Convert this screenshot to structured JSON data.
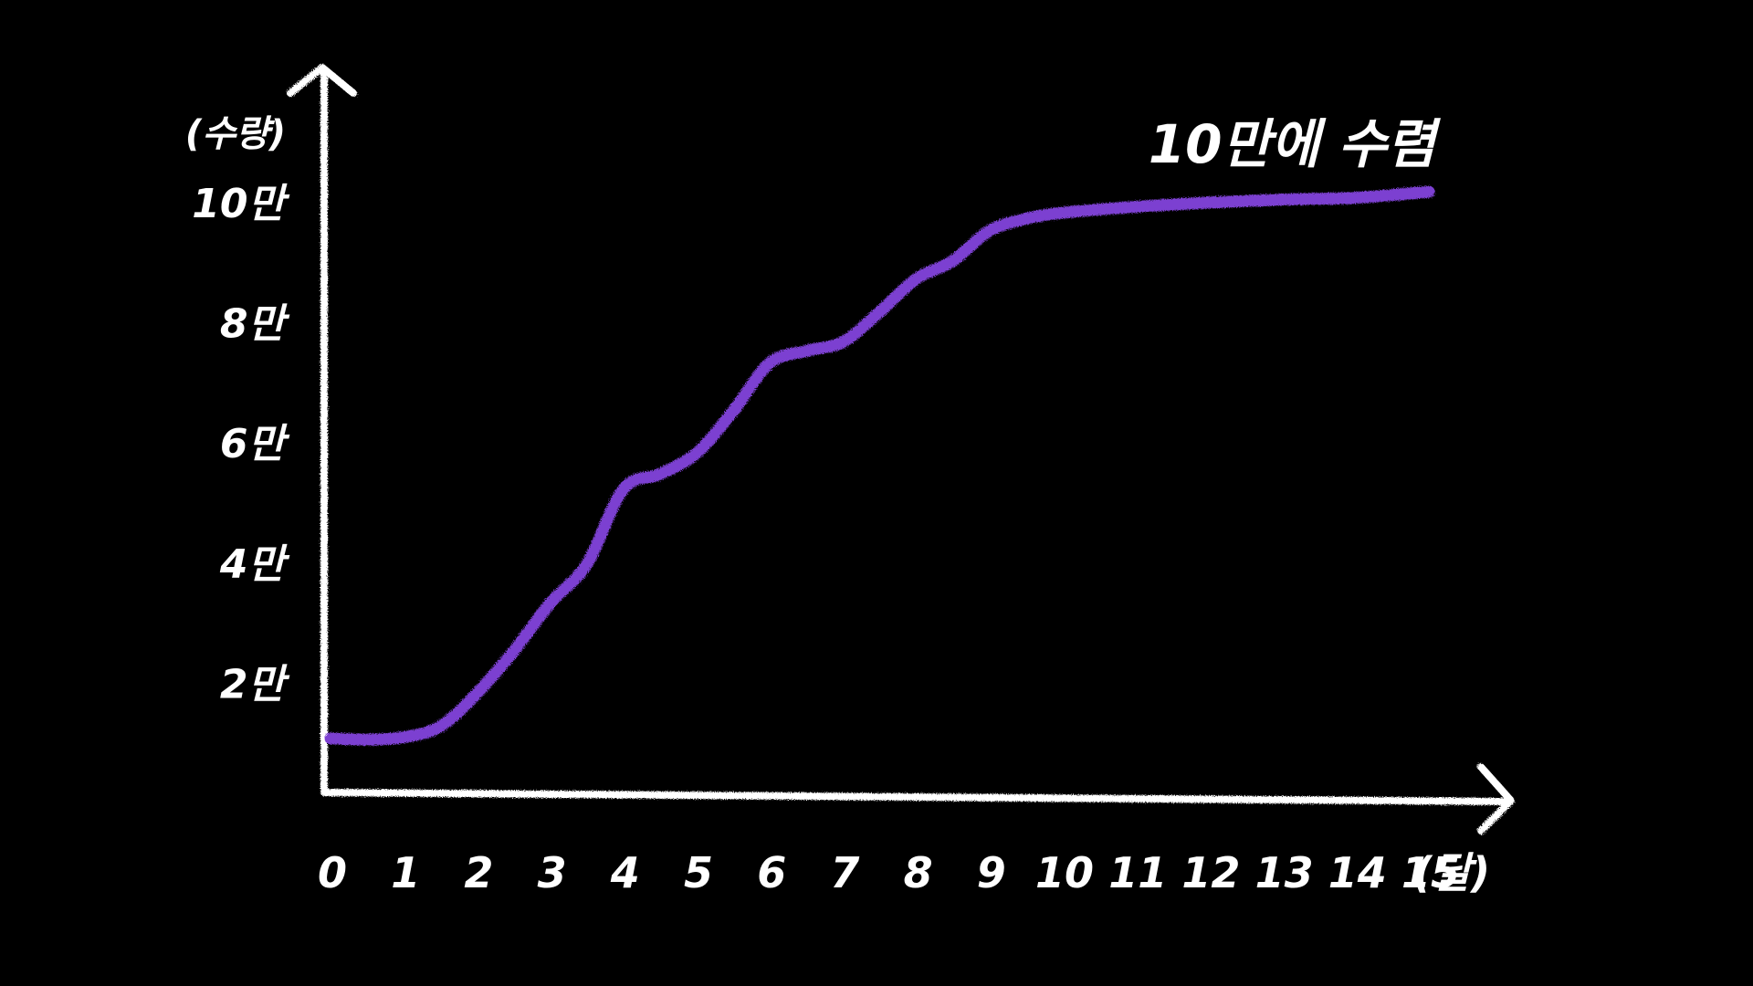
{
  "chart_data": {
    "type": "line",
    "ylabel": "(수량)",
    "xunit": "(달)",
    "annotation": "10만에 수렴",
    "x_ticks": [
      "0",
      "1",
      "2",
      "3",
      "4",
      "5",
      "6",
      "7",
      "8",
      "9",
      "10",
      "11",
      "12",
      "13",
      "14",
      "15"
    ],
    "y_ticks": [
      {
        "value": 20000,
        "label": "2만"
      },
      {
        "value": 40000,
        "label": "4만"
      },
      {
        "value": 60000,
        "label": "6만"
      },
      {
        "value": 80000,
        "label": "8만"
      },
      {
        "value": 100000,
        "label": "10만"
      }
    ],
    "xlim": [
      0,
      16
    ],
    "ylim": [
      0,
      100000
    ],
    "reference_line": {
      "value": 100000,
      "color": "#8a8a8a"
    },
    "series": [
      {
        "color": "#7b3fd1",
        "x": [
          0,
          0.5,
          1,
          1.5,
          2,
          2.5,
          3,
          3.5,
          4,
          4.5,
          5,
          5.5,
          6,
          6.5,
          7,
          7.5,
          8,
          8.5,
          9,
          9.5,
          10,
          11,
          12,
          13,
          14,
          15
        ],
        "y": [
          9000,
          8800,
          9200,
          11000,
          16500,
          23500,
          31500,
          38000,
          50500,
          53000,
          56500,
          63500,
          71500,
          73500,
          75000,
          80000,
          85500,
          88500,
          93500,
          95500,
          96500,
          97500,
          98200,
          98700,
          99000,
          100000
        ]
      }
    ],
    "grid": false,
    "legend": "none"
  },
  "colors": {
    "background": "#000000",
    "axis": "#ffffff",
    "text": "#ffffff"
  }
}
